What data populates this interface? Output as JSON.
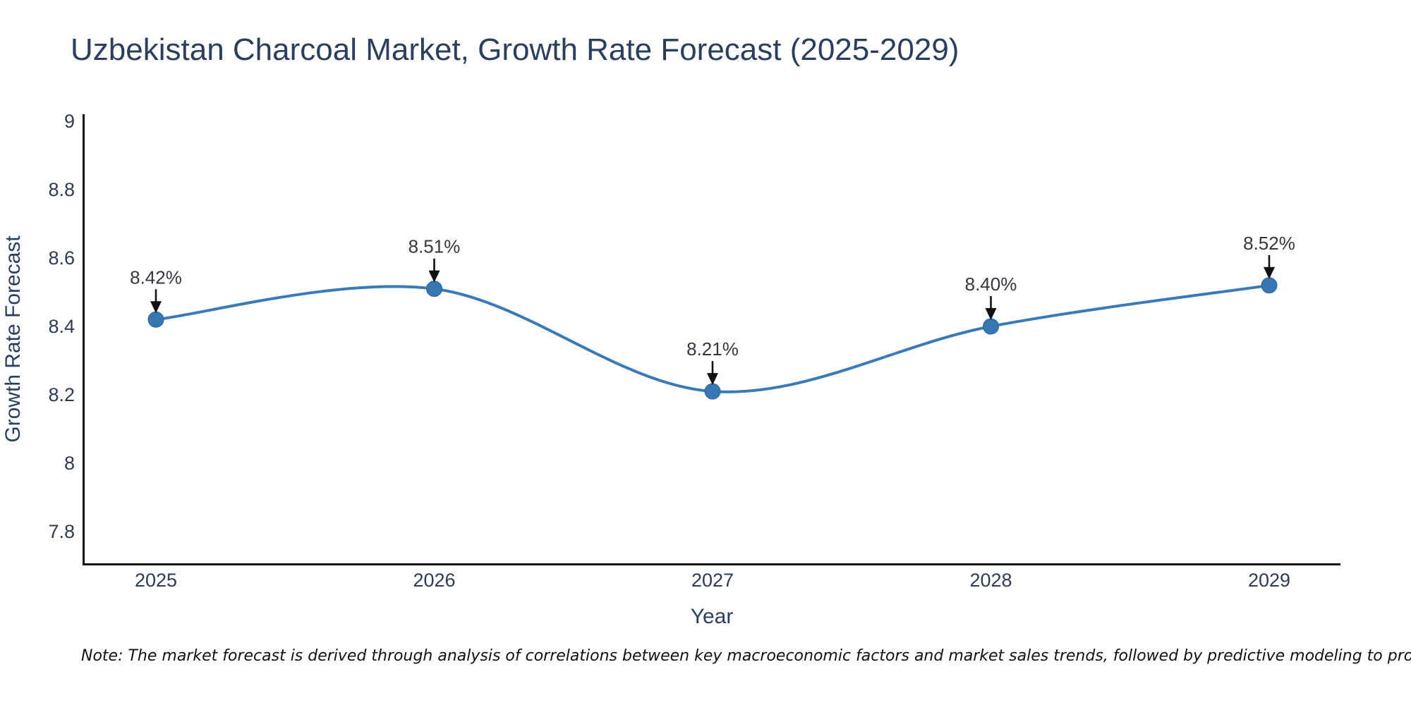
{
  "chart_data": {
    "type": "line",
    "line_shape": "spline",
    "title": "Uzbekistan Charcoal Market, Growth Rate Forecast (2025-2029)",
    "xlabel": "Year",
    "ylabel": "Growth Rate Forecast",
    "x": [
      "2025",
      "2026",
      "2027",
      "2028",
      "2029"
    ],
    "series": [
      {
        "name": "Growth Rate Forecast",
        "values": [
          8.42,
          8.51,
          8.21,
          8.4,
          8.52
        ]
      }
    ],
    "point_labels": [
      "8.42%",
      "8.51%",
      "8.21%",
      "8.40%",
      "8.52%"
    ],
    "yticks": [
      "7.8",
      "8",
      "8.2",
      "8.4",
      "8.6",
      "8.8",
      "9"
    ],
    "ylim": [
      7.7,
      9.02
    ],
    "grid": false,
    "legend": "none",
    "annotations_style": "down-arrow",
    "colors": {
      "line": "#3a7ab7",
      "marker": "#3577b2",
      "marker_edge": "#2d629b",
      "axis": "#111111",
      "tick_text": "#2f3b52",
      "title_text": "#2a3f5f",
      "annotation_text": "#333740",
      "arrow": "#111111",
      "note_text": "#111111",
      "background": "#ffffff"
    },
    "note": "Note: The market forecast is derived through analysis of correlations between key macroeconomic factors and market sales trends, followed by predictive modeling to project future sales"
  }
}
